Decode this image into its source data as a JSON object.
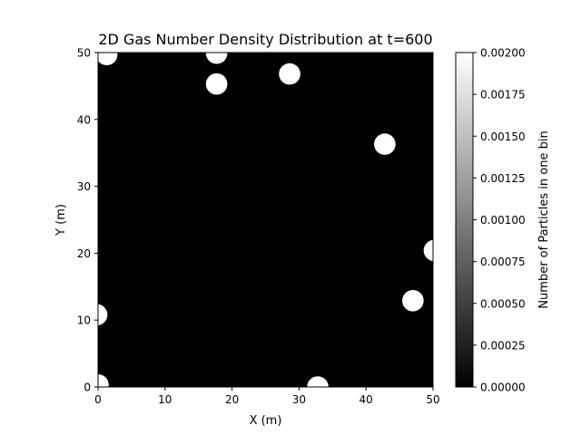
{
  "chart_data": {
    "type": "heatmap",
    "title": "2D Gas Number Density Distribution at t=600",
    "xlabel": "X (m)",
    "ylabel": "Y (m)",
    "xlim": [
      0,
      50
    ],
    "ylim": [
      0,
      50
    ],
    "x_ticks": [
      "0",
      "10",
      "20",
      "30",
      "40",
      "50"
    ],
    "y_ticks": [
      "0",
      "10",
      "20",
      "30",
      "40",
      "50"
    ],
    "grid": false,
    "colormap": "gray",
    "background_value": 0,
    "colorbar": {
      "label": "Number of Particles in one bin",
      "range": [
        0,
        0.002
      ],
      "ticks": [
        "0.00000",
        "0.00025",
        "0.00050",
        "0.00075",
        "0.00100",
        "0.00125",
        "0.00150",
        "0.00175",
        "0.00200"
      ]
    },
    "particles": [
      {
        "x": 1.3,
        "y": 49.7,
        "r": 1.6,
        "value": 0.002
      },
      {
        "x": 17.7,
        "y": 49.9,
        "r": 1.6,
        "value": 0.002
      },
      {
        "x": 17.7,
        "y": 45.3,
        "r": 1.6,
        "value": 0.002
      },
      {
        "x": 28.6,
        "y": 46.8,
        "r": 1.6,
        "value": 0.002
      },
      {
        "x": 42.8,
        "y": 36.3,
        "r": 1.6,
        "value": 0.002
      },
      {
        "x": 50.2,
        "y": 20.4,
        "r": 1.6,
        "value": 0.002
      },
      {
        "x": 47.0,
        "y": 12.9,
        "r": 1.6,
        "value": 0.002
      },
      {
        "x": -0.2,
        "y": 10.8,
        "r": 1.6,
        "value": 0.002
      },
      {
        "x": 32.8,
        "y": 0.0,
        "r": 1.6,
        "value": 0.002
      },
      {
        "x": 0.0,
        "y": 0.3,
        "r": 1.6,
        "value": 0.002
      }
    ]
  }
}
